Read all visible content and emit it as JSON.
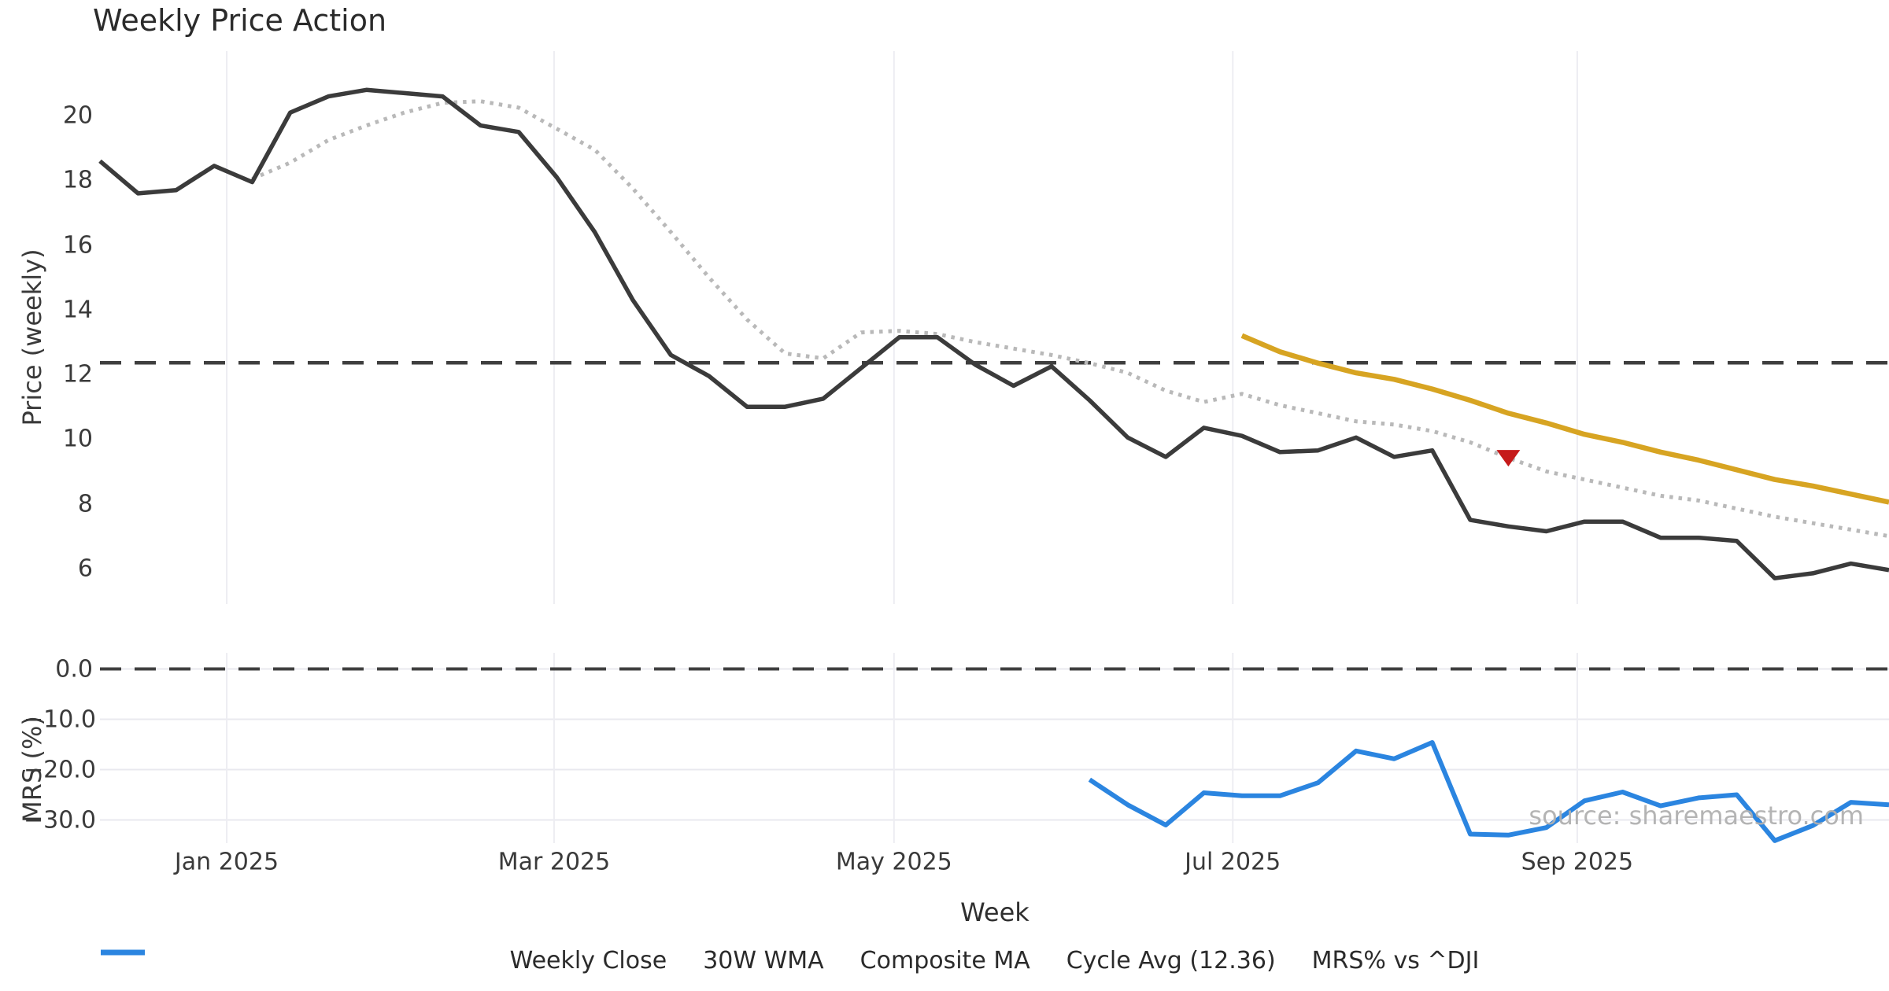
{
  "title": "Weekly Price Action",
  "watermark": "source: sharemaestro.com",
  "colors": {
    "weekly_close": "#3b3b3b",
    "composite_ma": "#b9b9b9",
    "wma_30w": "#d7a422",
    "cycle_avg": "#3f3f3f",
    "mrs": "#2b85e0",
    "marker": "#c61a1a",
    "grid": "#ededf2",
    "text": "#3a3a3a",
    "background": "#ffffff"
  },
  "chart_data": {
    "type": "line",
    "title": "Weekly Price Action",
    "x": {
      "label": "Week",
      "xlim": [
        0,
        47
      ],
      "n_points": 48,
      "ticks": [
        {
          "label": "Jan 2025",
          "index": 3.33
        },
        {
          "label": "Mar 2025",
          "index": 11.93
        },
        {
          "label": "May 2025",
          "index": 20.86
        },
        {
          "label": "Jul 2025",
          "index": 29.76
        },
        {
          "label": "Sep 2025",
          "index": 38.81
        }
      ]
    },
    "legend": [
      {
        "label": "Weekly Close",
        "color": "#3b3b3b",
        "dash": "solid",
        "width": 6
      },
      {
        "label": "30W WMA",
        "color": "#d7a422",
        "dash": "solid",
        "width": 7
      },
      {
        "label": "Composite MA",
        "color": "#b9b9b9",
        "dash": "dotted",
        "width": 5
      },
      {
        "label": "Cycle Avg (12.36)",
        "color": "#3f3f3f",
        "dash": "dashed",
        "width": 5
      },
      {
        "label": "MRS% vs ^DJI",
        "color": "#2b85e0",
        "dash": "solid",
        "width": 7
      }
    ],
    "panels": [
      {
        "name": "price",
        "ylabel": "Price (weekly)",
        "ylim": [
          4.9,
          22.0
        ],
        "grid": "vertical-only",
        "yticks": [
          {
            "label": "20",
            "value": 20
          },
          {
            "label": "18",
            "value": 18
          },
          {
            "label": "16",
            "value": 16
          },
          {
            "label": "14",
            "value": 14
          },
          {
            "label": "12",
            "value": 12
          },
          {
            "label": "10",
            "value": 10
          },
          {
            "label": "8",
            "value": 8
          },
          {
            "label": "6",
            "value": 6
          }
        ],
        "hlines": [
          {
            "name": "Cycle Avg (12.36)",
            "value": 12.36,
            "color": "#3f3f3f",
            "dash": "dashed",
            "width": 4.5
          }
        ],
        "marker": {
          "shape": "triangle-down",
          "index": 37,
          "value": 9.42,
          "color": "#c61a1a"
        },
        "series": [
          {
            "name": "Composite MA",
            "color": "#b9b9b9",
            "dash": "dotted",
            "width": 5,
            "values": [
              null,
              null,
              null,
              null,
              18.05,
              18.55,
              19.25,
              19.7,
              20.1,
              20.4,
              20.45,
              20.25,
              19.6,
              18.95,
              17.75,
              16.4,
              15.0,
              13.7,
              12.65,
              12.5,
              13.3,
              13.35,
              13.25,
              13.0,
              12.8,
              12.6,
              12.35,
              12.05,
              11.5,
              11.15,
              11.4,
              11.05,
              10.8,
              10.55,
              10.45,
              10.25,
              9.9,
              9.42,
              9.0,
              8.75,
              8.5,
              8.25,
              8.1,
              7.85,
              7.6,
              7.4,
              7.2,
              7.0
            ]
          },
          {
            "name": "30W WMA",
            "color": "#d7a422",
            "dash": "solid",
            "width": 6.5,
            "values": [
              null,
              null,
              null,
              null,
              null,
              null,
              null,
              null,
              null,
              null,
              null,
              null,
              null,
              null,
              null,
              null,
              null,
              null,
              null,
              null,
              null,
              null,
              null,
              null,
              null,
              null,
              null,
              null,
              null,
              null,
              13.2,
              12.7,
              12.35,
              12.05,
              11.85,
              11.55,
              11.2,
              10.8,
              10.5,
              10.15,
              9.9,
              9.6,
              9.35,
              9.05,
              8.75,
              8.55,
              8.3,
              8.05
            ]
          },
          {
            "name": "Weekly Close",
            "color": "#3b3b3b",
            "dash": "solid",
            "width": 5.5,
            "values": [
              18.6,
              17.6,
              17.7,
              18.45,
              17.95,
              20.1,
              20.6,
              20.8,
              20.7,
              20.6,
              19.7,
              19.5,
              18.1,
              16.4,
              14.3,
              12.6,
              11.95,
              11.0,
              11.0,
              11.25,
              12.2,
              13.15,
              13.15,
              12.3,
              11.65,
              12.25,
              11.2,
              10.05,
              9.45,
              10.35,
              10.1,
              9.6,
              9.65,
              10.05,
              9.45,
              9.65,
              7.5,
              7.3,
              7.15,
              7.45,
              7.45,
              6.95,
              6.95,
              6.85,
              5.7,
              5.85,
              6.15,
              5.95
            ]
          }
        ]
      },
      {
        "name": "mrs",
        "ylabel": "MRS (%)",
        "ylim": [
          -34.6,
          3.2
        ],
        "grid": "both",
        "grid_values": [
          0,
          -10,
          -20,
          -30
        ],
        "yticks": [
          {
            "label": "0.0",
            "value": 0
          },
          {
            "label": "−10.0",
            "value": -10
          },
          {
            "label": "−20.0",
            "value": -20
          },
          {
            "label": "−30.0",
            "value": -30
          }
        ],
        "hlines": [
          {
            "name": "zero",
            "value": 0,
            "color": "#3f3f3f",
            "dash": "dashed",
            "width": 4
          }
        ],
        "series": [
          {
            "name": "MRS% vs ^DJI",
            "color": "#2b85e0",
            "dash": "solid",
            "width": 6,
            "values": [
              null,
              null,
              null,
              null,
              null,
              null,
              null,
              null,
              null,
              null,
              null,
              null,
              null,
              null,
              null,
              null,
              null,
              null,
              null,
              null,
              null,
              null,
              null,
              null,
              null,
              null,
              -22.0,
              -27.0,
              -31.0,
              -24.6,
              -25.2,
              -25.2,
              -22.6,
              -16.3,
              -17.85,
              -14.6,
              -32.8,
              -33.0,
              -31.5,
              -26.2,
              -24.45,
              -27.2,
              -25.6,
              -25.0,
              -34.1,
              -31.1,
              -26.5,
              -27.0
            ]
          }
        ]
      }
    ]
  }
}
